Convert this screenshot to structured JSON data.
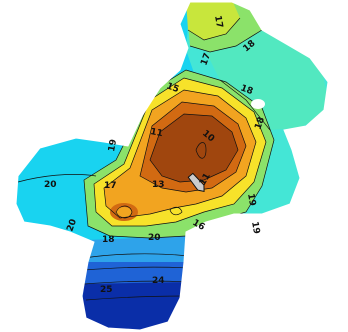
{
  "map": {
    "colors": {
      "background": "#ffffff",
      "deep_blue": "#0a2ea8",
      "blue": "#1f63d6",
      "light_blue": "#2ea3ea",
      "cyan": "#19d3f0",
      "aqua": "#44e6d6",
      "teal_green": "#52e8c0",
      "green": "#8be26a",
      "yellow_green": "#c8e63c",
      "yellow": "#f7e22a",
      "orange": "#f2a420",
      "dark_orange": "#d26a12",
      "brown": "#a0460e",
      "contour_line": "#111111",
      "marker_fill": "#cccccc"
    },
    "contour_labels": {
      "l11": "11",
      "l10": "10",
      "l13": "13",
      "l15": "15",
      "l16": "16",
      "l17a": "17",
      "l17b": "17",
      "l17c": "17",
      "l18a": "18",
      "l18b": "18",
      "l18c": "18",
      "l18d": "18",
      "l19a": "19",
      "l19b": "19",
      "l19c": "19",
      "l20a": "20",
      "l20b": "20",
      "l20c": "20",
      "l24": "24",
      "l25": "25",
      "l11b": "11"
    },
    "marker_icon": "boat-icon"
  }
}
